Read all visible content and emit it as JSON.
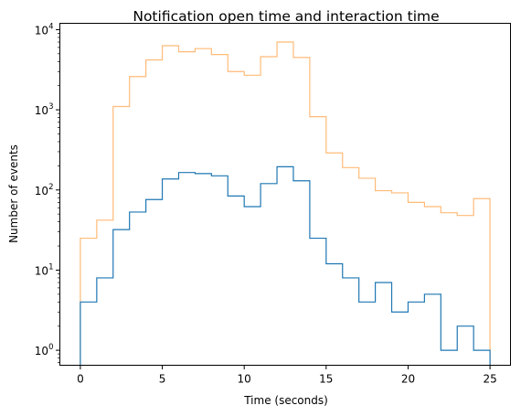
{
  "chart_data": {
    "type": "histogram-step",
    "title": "Notification open time and interaction time",
    "xlabel": "Time (seconds)",
    "ylabel": "Number of events",
    "xlim": [
      -1.25,
      26.25
    ],
    "ylim": [
      0.65,
      12000
    ],
    "yscale": "log",
    "grid": false,
    "x_ticks": [
      0,
      5,
      10,
      15,
      20,
      25
    ],
    "y_ticks": [
      {
        "base": "10",
        "exp": "0",
        "value": 1
      },
      {
        "base": "10",
        "exp": "1",
        "value": 10
      },
      {
        "base": "10",
        "exp": "2",
        "value": 100
      },
      {
        "base": "10",
        "exp": "3",
        "value": 1000
      },
      {
        "base": "10",
        "exp": "4",
        "value": 10000
      }
    ],
    "bin_edges": [
      0,
      1,
      2,
      3,
      4,
      5,
      6,
      7,
      8,
      9,
      10,
      11,
      12,
      13,
      14,
      15,
      16,
      17,
      18,
      19,
      20,
      21,
      22,
      23,
      24,
      25
    ],
    "series": [
      {
        "color": "#ffbb78",
        "values": [
          25,
          42,
          1100,
          2600,
          4200,
          6300,
          5300,
          5800,
          4900,
          3000,
          2700,
          4600,
          7000,
          4500,
          820,
          290,
          190,
          140,
          98,
          92,
          70,
          62,
          52,
          48,
          78
        ]
      },
      {
        "color": "#1f77b4",
        "values": [
          4,
          8,
          32,
          53,
          76,
          137,
          165,
          160,
          150,
          84,
          62,
          120,
          195,
          130,
          25,
          12,
          8,
          4,
          7,
          3,
          4,
          5,
          1,
          2,
          1
        ]
      }
    ]
  }
}
